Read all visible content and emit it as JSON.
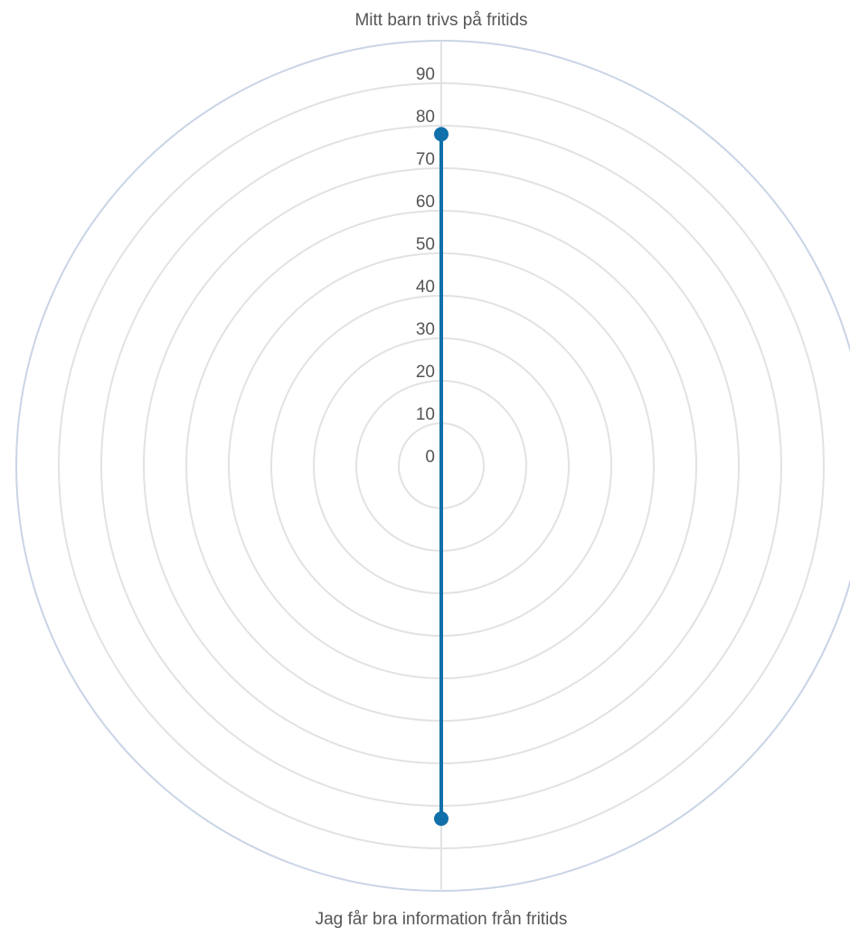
{
  "chart_data": {
    "type": "radar",
    "axes": [
      "Mitt barn trivs på fritids",
      "Jag får bra information från fritids"
    ],
    "radial_ticks": [
      0,
      10,
      20,
      30,
      40,
      50,
      60,
      70,
      80,
      90
    ],
    "rmax": 100,
    "series": [
      {
        "values": [
          78,
          83
        ]
      }
    ],
    "grid": true,
    "colors": {
      "series": "#1170aa",
      "grid": "#e2e2e2",
      "outer_ring": "#c9d4e6",
      "text": "#555555"
    }
  }
}
